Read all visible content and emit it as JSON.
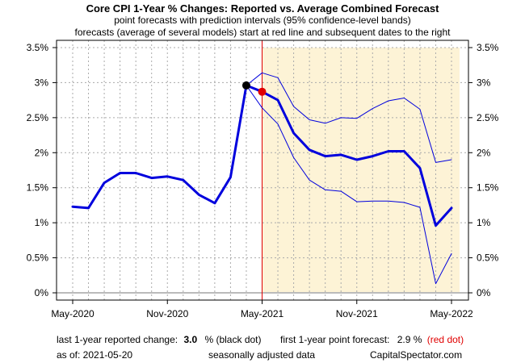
{
  "chart_data": {
    "type": "line",
    "title": "Core CPI 1-Year % Changes: Reported vs. Average Combined Forecast",
    "subtitle_lines": [
      "point forecasts with prediction intervals (95% confidence-level bands)",
      "forecasts (average of several models) start at red line and subsequent dates to the right"
    ],
    "x_tick_labels": [
      "May-2020",
      "Nov-2020",
      "May-2021",
      "Nov-2021",
      "May-2022"
    ],
    "y_tick_labels": [
      "0%",
      "0.5%",
      "1%",
      "1.5%",
      "2%",
      "2.5%",
      "3%",
      "3.5%"
    ],
    "y_ticks": [
      0,
      0.5,
      1,
      1.5,
      2,
      2.5,
      3,
      3.5
    ],
    "ylim": [
      0,
      3.5
    ],
    "x_dates": [
      "2020-05",
      "2020-06",
      "2020-07",
      "2020-08",
      "2020-09",
      "2020-10",
      "2020-11",
      "2020-12",
      "2021-01",
      "2021-02",
      "2021-03",
      "2021-04",
      "2021-05",
      "2021-06",
      "2021-07",
      "2021-08",
      "2021-09",
      "2021-10",
      "2021-11",
      "2021-12",
      "2022-01",
      "2022-02",
      "2022-03",
      "2022-04",
      "2022-05"
    ],
    "x_ticks": [
      "2020-05",
      "2020-11",
      "2021-05",
      "2021-11",
      "2022-05"
    ],
    "forecast_start": "2021-05",
    "series": [
      {
        "role": "reported and point forecast",
        "color": "#0000dd",
        "values": [
          1.23,
          1.21,
          1.57,
          1.71,
          1.71,
          1.64,
          1.66,
          1.61,
          1.4,
          1.28,
          1.65,
          2.96,
          2.87,
          2.75,
          2.28,
          2.04,
          1.95,
          1.97,
          1.9,
          1.95,
          2.02,
          2.02,
          1.78,
          0.96,
          1.21
        ]
      },
      {
        "role": "upper 95% band",
        "color": "#0000dd",
        "start": "2021-04",
        "values": [
          2.96,
          3.14,
          3.07,
          2.66,
          2.47,
          2.42,
          2.5,
          2.49,
          2.63,
          2.74,
          2.78,
          2.62,
          1.86,
          1.9
        ]
      },
      {
        "role": "lower 95% band",
        "color": "#0000dd",
        "start": "2021-04",
        "values": [
          2.96,
          2.64,
          2.41,
          1.93,
          1.61,
          1.47,
          1.45,
          1.3,
          1.31,
          1.31,
          1.29,
          1.22,
          0.13,
          0.56
        ]
      }
    ],
    "black_dot": {
      "date": "2021-04",
      "value": 2.96
    },
    "red_dot": {
      "date": "2021-05",
      "value": 2.87
    },
    "colors": {
      "line": "#0000dd",
      "forecast_marker": "#e00000",
      "forecast_shade": "#fdf3d6",
      "last_reported_dot": "#000000",
      "grid": "#aaaaaa"
    },
    "grid": true,
    "axis_right": true
  },
  "footer": {
    "reported_label": "last 1-year reported change:",
    "reported_value": "3.0",
    "reported_note": "% (black dot)",
    "forecast_label": "first 1-year point forecast:",
    "forecast_value": "2.9 %",
    "forecast_note": "(red dot)",
    "as_of": "as of:  2021-05-20",
    "adjustment_note": "seasonally adjusted data",
    "source": "CapitalSpectator.com"
  }
}
